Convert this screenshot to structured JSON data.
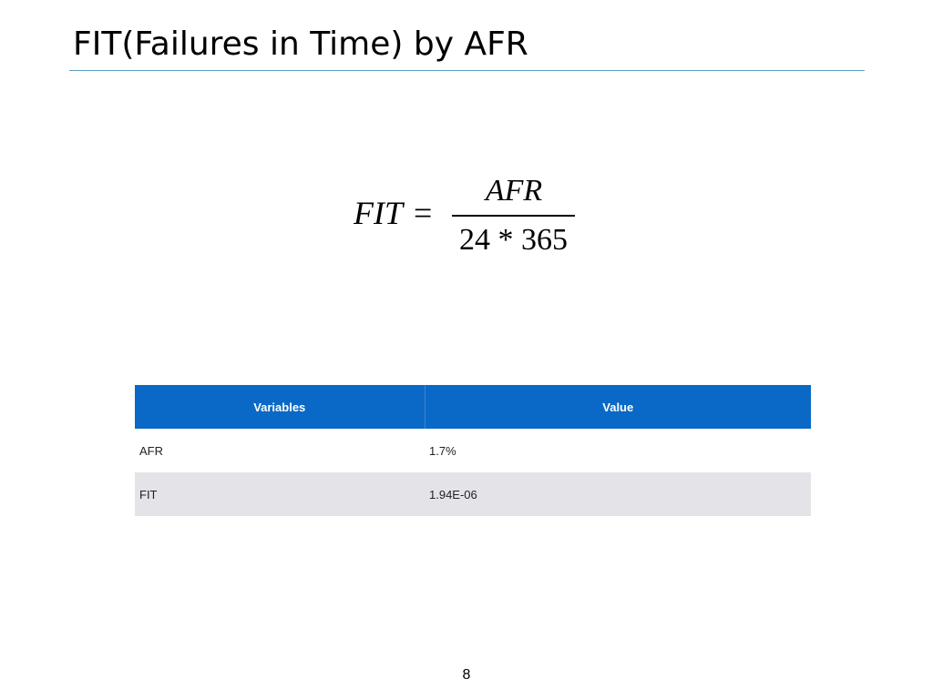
{
  "slide": {
    "title": "FIT(Failures in Time) by AFR",
    "page_number": "8"
  },
  "formula": {
    "lhs": "FIT",
    "equals": "=",
    "numerator": "AFR",
    "denominator": "24 * 365"
  },
  "table": {
    "headers": [
      "Variables",
      "Value"
    ],
    "rows": [
      [
        "AFR",
        "1.7%"
      ],
      [
        "FIT",
        "1.94E-06"
      ]
    ]
  },
  "colors": {
    "header_background": "#0a69c6",
    "title_rule": "#5a9bc4",
    "row_alternate": "#e4e4e8"
  }
}
